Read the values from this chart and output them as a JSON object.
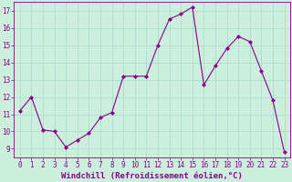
{
  "x": [
    0,
    1,
    2,
    3,
    4,
    5,
    6,
    7,
    8,
    9,
    10,
    11,
    12,
    13,
    14,
    15,
    16,
    17,
    18,
    19,
    20,
    21,
    22,
    23
  ],
  "y": [
    11.2,
    12.0,
    10.1,
    10.0,
    9.1,
    9.5,
    9.9,
    10.8,
    11.1,
    13.2,
    13.2,
    13.2,
    15.0,
    16.5,
    16.8,
    17.2,
    12.7,
    13.8,
    14.8,
    15.5,
    15.2,
    13.5,
    11.8,
    8.8
  ],
  "line_color": "#880088",
  "marker": "D",
  "marker_size": 2.0,
  "bg_color": "#cceedd",
  "grid_color": "#aaddcc",
  "xlabel": "Windchill (Refroidissement éolien,°C)",
  "xlabel_fontsize": 6.5,
  "xlabel_color": "#880088",
  "ylim": [
    8.5,
    17.5
  ],
  "xlim": [
    -0.5,
    23.5
  ],
  "yticks": [
    9,
    10,
    11,
    12,
    13,
    14,
    15,
    16,
    17
  ],
  "xticks": [
    0,
    1,
    2,
    3,
    4,
    5,
    6,
    7,
    8,
    9,
    10,
    11,
    12,
    13,
    14,
    15,
    16,
    17,
    18,
    19,
    20,
    21,
    22,
    23
  ],
  "tick_fontsize": 5.5,
  "tick_color": "#880088",
  "spine_color": "#880088",
  "linewidth": 0.8
}
